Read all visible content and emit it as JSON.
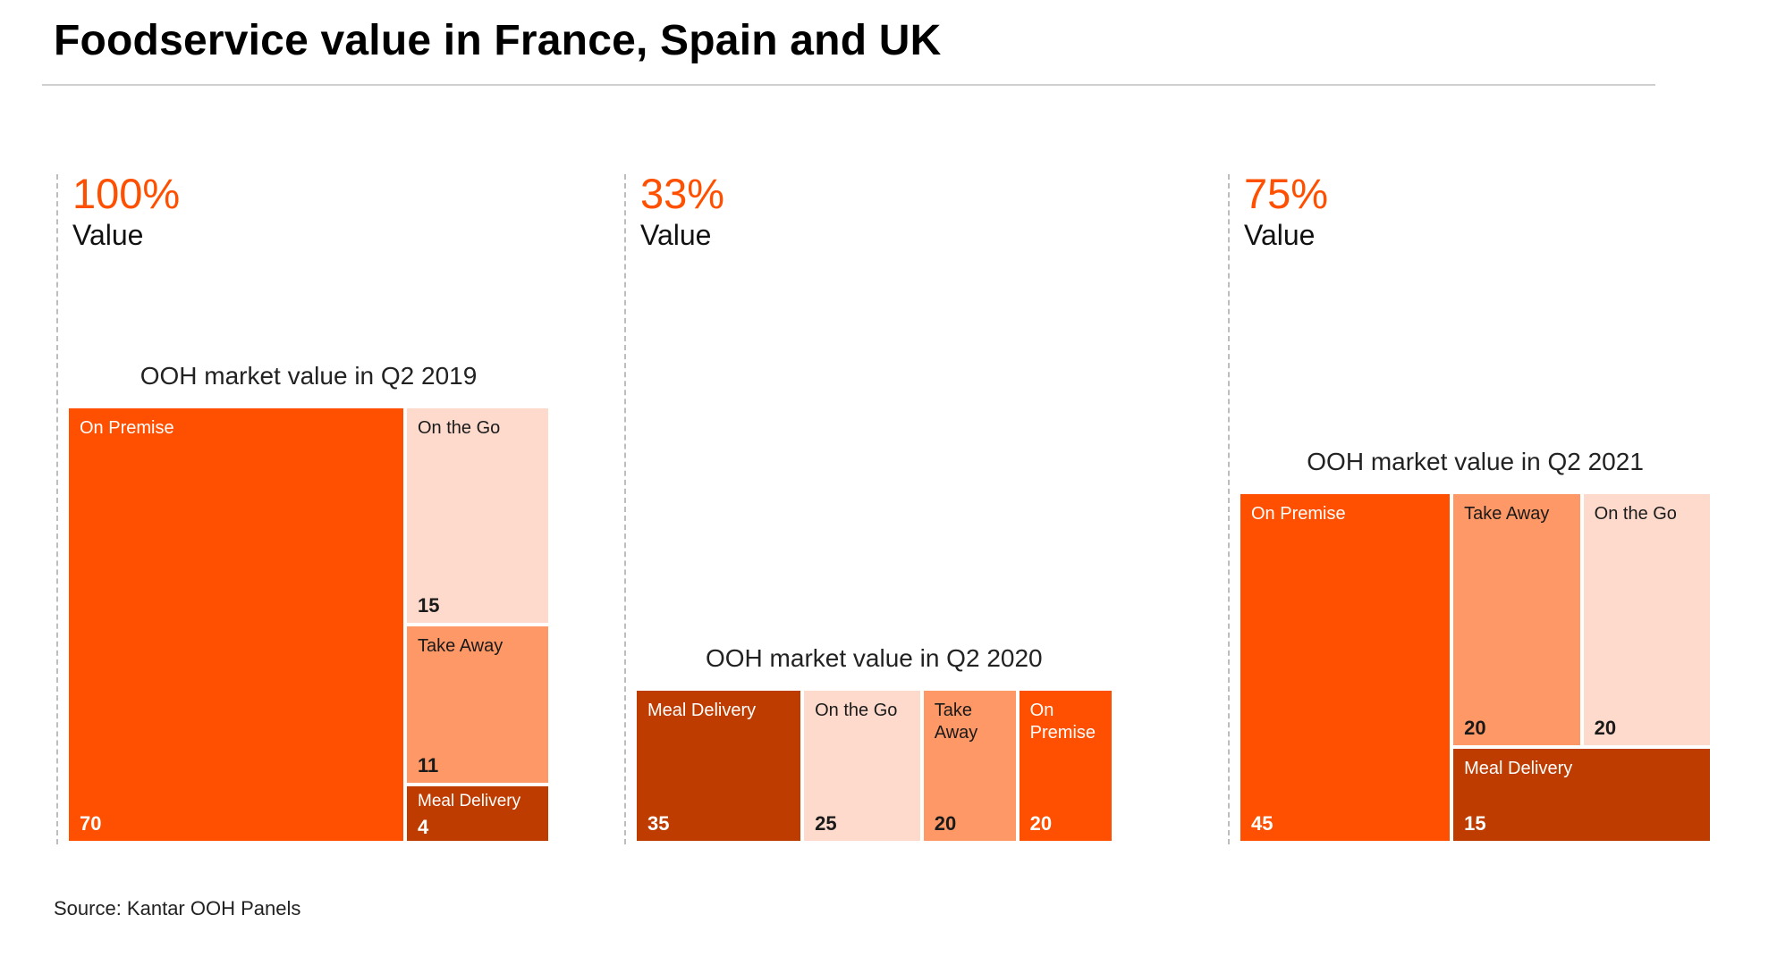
{
  "title": "Foodservice value in France, Spain and UK",
  "source": "Source: Kantar OOH Panels",
  "colors": {
    "accent": "#fe5000",
    "On Premise": "#fe5000",
    "Take Away": "#fe9866",
    "On the Go": "#fedacc",
    "Meal Delivery": "#bf3c00"
  },
  "panels": [
    {
      "percent": "100%",
      "percent_label": "Value"
    },
    {
      "percent": "33%",
      "percent_label": "Value"
    },
    {
      "percent": "75%",
      "percent_label": "Value"
    }
  ],
  "chart_data": [
    {
      "type": "treemap",
      "title": "OOH market value in Q2 2019",
      "relative_value_percent": 100,
      "items": [
        {
          "label": "On Premise",
          "value": 70
        },
        {
          "label": "On the Go",
          "value": 15
        },
        {
          "label": "Take Away",
          "value": 11
        },
        {
          "label": "Meal Delivery",
          "value": 4
        }
      ]
    },
    {
      "type": "treemap",
      "title": "OOH market value in Q2 2020",
      "relative_value_percent": 33,
      "items": [
        {
          "label": "Meal Delivery",
          "value": 35
        },
        {
          "label": "On the Go",
          "value": 25
        },
        {
          "label": "Take Away",
          "value": 20
        },
        {
          "label": "On Premise",
          "value": 20
        }
      ]
    },
    {
      "type": "treemap",
      "title": "OOH market value in Q2 2021",
      "relative_value_percent": 75,
      "items": [
        {
          "label": "On Premise",
          "value": 45
        },
        {
          "label": "Take Away",
          "value": 20
        },
        {
          "label": "On the Go",
          "value": 20
        },
        {
          "label": "Meal Delivery",
          "value": 15
        }
      ]
    }
  ]
}
